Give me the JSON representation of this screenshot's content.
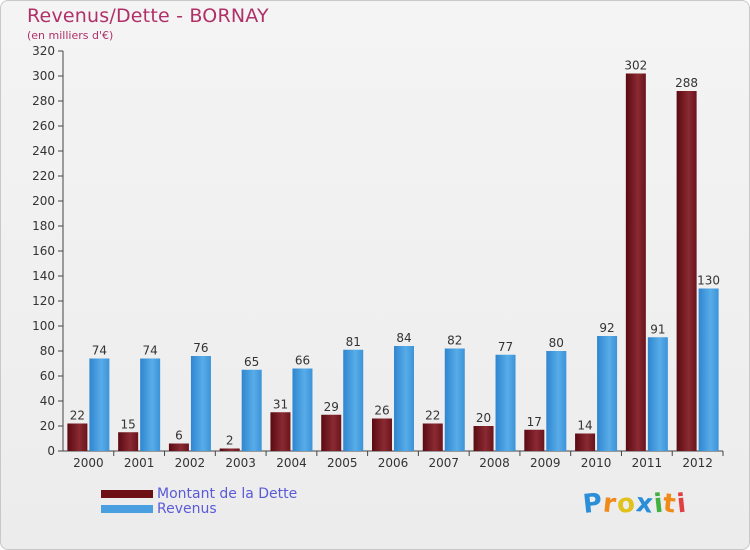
{
  "chart_data": {
    "type": "bar",
    "title": "Revenus/Dette - BORNAY",
    "subtitle": "(en milliers d'€)",
    "categories": [
      "2000",
      "2001",
      "2002",
      "2003",
      "2004",
      "2005",
      "2006",
      "2007",
      "2008",
      "2009",
      "2010",
      "2011",
      "2012"
    ],
    "series": [
      {
        "name": "Montant de la Dette",
        "values": [
          22,
          15,
          6,
          2,
          31,
          29,
          26,
          22,
          20,
          17,
          14,
          302,
          288
        ],
        "color": "#7a1a22"
      },
      {
        "name": "Revenus",
        "values": [
          74,
          74,
          76,
          65,
          66,
          81,
          84,
          82,
          77,
          80,
          92,
          91,
          130
        ],
        "color": "#4a9fe0"
      }
    ],
    "ylim": [
      0,
      320
    ],
    "yticks": [
      0,
      20,
      40,
      60,
      80,
      100,
      120,
      140,
      160,
      180,
      200,
      220,
      240,
      260,
      280,
      300,
      320
    ],
    "grid": false,
    "legend": "bottom-left"
  },
  "brand": {
    "letters": [
      "P",
      "r",
      "o",
      "x",
      "i",
      "t",
      "i"
    ],
    "colors": [
      "#2a8fd8",
      "#f08a1a",
      "#e0c21a",
      "#2a8fd8",
      "#40b040",
      "#f08a1a",
      "#e04040"
    ]
  }
}
